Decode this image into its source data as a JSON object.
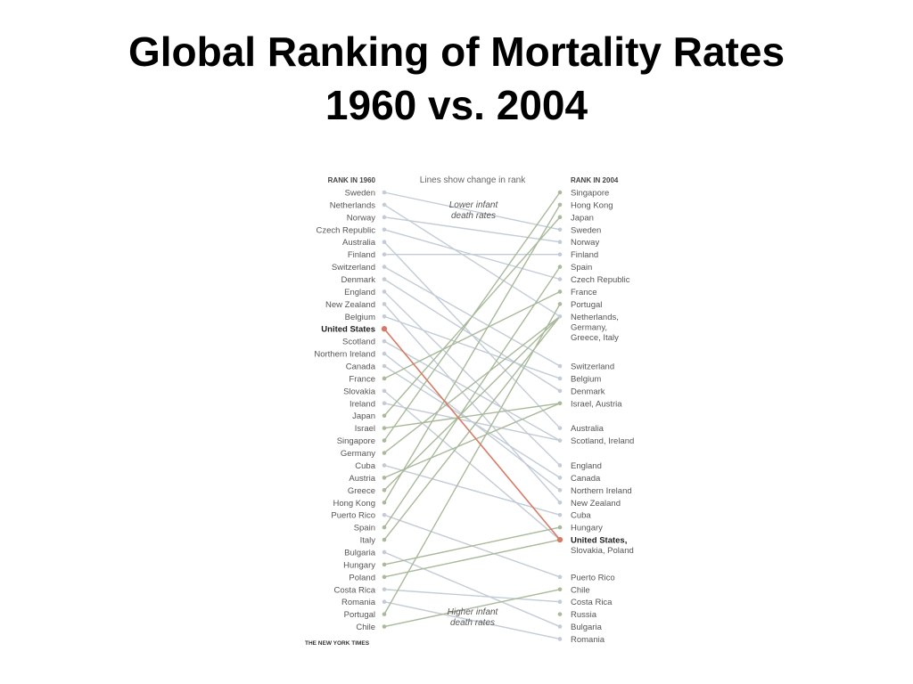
{
  "slide": {
    "title_line1": "Global Ranking of Mortality Rates",
    "title_line2": "1960 vs. 2004"
  },
  "chart_data": {
    "type": "slope",
    "left_header": "RANK IN 1960",
    "right_header": "RANK IN 2004",
    "top_caption": "Lines show change in rank",
    "upper_annotation": [
      "Lower infant",
      "death rates"
    ],
    "lower_annotation": [
      "Higher infant",
      "death rates"
    ],
    "source": "THE NEW YORK TIMES",
    "highlight": "United States",
    "colors": {
      "improved": "#a9b99a",
      "worsened": "#c3ccd6",
      "highlight": "#d77b66",
      "text": "#555555"
    },
    "rank_1960": [
      "Sweden",
      "Netherlands",
      "Norway",
      "Czech Republic",
      "Australia",
      "Finland",
      "Switzerland",
      "Denmark",
      "England",
      "New Zealand",
      "Belgium",
      "United States",
      "Scotland",
      "Northern Ireland",
      "Canada",
      "France",
      "Slovakia",
      "Ireland",
      "Japan",
      "Israel",
      "Singapore",
      "Germany",
      "Cuba",
      "Austria",
      "Greece",
      "Hong Kong",
      "Puerto Rico",
      "Spain",
      "Italy",
      "Bulgaria",
      "Hungary",
      "Poland",
      "Costa Rica",
      "Romania",
      "Portugal",
      "Chile"
    ],
    "rank_2004_labels": [
      {
        "rank": 1,
        "lines": [
          "Singapore"
        ]
      },
      {
        "rank": 2,
        "lines": [
          "Hong Kong"
        ]
      },
      {
        "rank": 3,
        "lines": [
          "Japan"
        ]
      },
      {
        "rank": 4,
        "lines": [
          "Sweden"
        ]
      },
      {
        "rank": 5,
        "lines": [
          "Norway"
        ]
      },
      {
        "rank": 6,
        "lines": [
          "Finland"
        ]
      },
      {
        "rank": 7,
        "lines": [
          "Spain"
        ]
      },
      {
        "rank": 8,
        "lines": [
          "Czech Republic"
        ]
      },
      {
        "rank": 9,
        "lines": [
          "France"
        ]
      },
      {
        "rank": 10,
        "lines": [
          "Portugal"
        ]
      },
      {
        "rank": 11,
        "lines": [
          "Netherlands,",
          "Germany,",
          "Greece, Italy"
        ]
      },
      {
        "rank": 15,
        "lines": [
          "Switzerland"
        ]
      },
      {
        "rank": 16,
        "lines": [
          "Belgium"
        ]
      },
      {
        "rank": 17,
        "lines": [
          "Denmark"
        ]
      },
      {
        "rank": 18,
        "lines": [
          "Israel, Austria"
        ]
      },
      {
        "rank": 20,
        "lines": [
          "Australia"
        ]
      },
      {
        "rank": 21,
        "lines": [
          "Scotland, Ireland"
        ]
      },
      {
        "rank": 23,
        "lines": [
          "England"
        ]
      },
      {
        "rank": 24,
        "lines": [
          "Canada"
        ]
      },
      {
        "rank": 25,
        "lines": [
          "Northern Ireland"
        ]
      },
      {
        "rank": 26,
        "lines": [
          "New Zealand"
        ]
      },
      {
        "rank": 27,
        "lines": [
          "Cuba"
        ]
      },
      {
        "rank": 28,
        "lines": [
          "Hungary"
        ]
      },
      {
        "rank": 29,
        "lines": [
          "United States,",
          "Slovakia, Poland"
        ]
      },
      {
        "rank": 32,
        "lines": [
          "Puerto Rico"
        ]
      },
      {
        "rank": 33,
        "lines": [
          "Chile"
        ]
      },
      {
        "rank": 34,
        "lines": [
          "Costa Rica"
        ]
      },
      {
        "rank": 35,
        "lines": [
          "Russia"
        ]
      },
      {
        "rank": 36,
        "lines": [
          "Bulgaria"
        ]
      },
      {
        "rank": 37,
        "lines": [
          "Romania"
        ]
      }
    ],
    "changes": [
      {
        "country": "Sweden",
        "rank_1960": 1,
        "rank_2004": 4
      },
      {
        "country": "Netherlands",
        "rank_1960": 2,
        "rank_2004": 11
      },
      {
        "country": "Norway",
        "rank_1960": 3,
        "rank_2004": 5
      },
      {
        "country": "Czech Republic",
        "rank_1960": 4,
        "rank_2004": 8
      },
      {
        "country": "Australia",
        "rank_1960": 5,
        "rank_2004": 20
      },
      {
        "country": "Finland",
        "rank_1960": 6,
        "rank_2004": 6
      },
      {
        "country": "Switzerland",
        "rank_1960": 7,
        "rank_2004": 15
      },
      {
        "country": "Denmark",
        "rank_1960": 8,
        "rank_2004": 17
      },
      {
        "country": "England",
        "rank_1960": 9,
        "rank_2004": 23
      },
      {
        "country": "New Zealand",
        "rank_1960": 10,
        "rank_2004": 26
      },
      {
        "country": "Belgium",
        "rank_1960": 11,
        "rank_2004": 16
      },
      {
        "country": "United States",
        "rank_1960": 12,
        "rank_2004": 29
      },
      {
        "country": "Scotland",
        "rank_1960": 13,
        "rank_2004": 21
      },
      {
        "country": "Northern Ireland",
        "rank_1960": 14,
        "rank_2004": 25
      },
      {
        "country": "Canada",
        "rank_1960": 15,
        "rank_2004": 24
      },
      {
        "country": "France",
        "rank_1960": 16,
        "rank_2004": 9
      },
      {
        "country": "Slovakia",
        "rank_1960": 17,
        "rank_2004": 29
      },
      {
        "country": "Ireland",
        "rank_1960": 18,
        "rank_2004": 21
      },
      {
        "country": "Japan",
        "rank_1960": 19,
        "rank_2004": 3
      },
      {
        "country": "Israel",
        "rank_1960": 20,
        "rank_2004": 18
      },
      {
        "country": "Singapore",
        "rank_1960": 21,
        "rank_2004": 1
      },
      {
        "country": "Germany",
        "rank_1960": 22,
        "rank_2004": 11
      },
      {
        "country": "Cuba",
        "rank_1960": 23,
        "rank_2004": 27
      },
      {
        "country": "Austria",
        "rank_1960": 24,
        "rank_2004": 18
      },
      {
        "country": "Greece",
        "rank_1960": 25,
        "rank_2004": 11
      },
      {
        "country": "Hong Kong",
        "rank_1960": 26,
        "rank_2004": 2
      },
      {
        "country": "Puerto Rico",
        "rank_1960": 27,
        "rank_2004": 32
      },
      {
        "country": "Spain",
        "rank_1960": 28,
        "rank_2004": 7
      },
      {
        "country": "Italy",
        "rank_1960": 29,
        "rank_2004": 11
      },
      {
        "country": "Bulgaria",
        "rank_1960": 30,
        "rank_2004": 36
      },
      {
        "country": "Hungary",
        "rank_1960": 31,
        "rank_2004": 28
      },
      {
        "country": "Poland",
        "rank_1960": 32,
        "rank_2004": 29
      },
      {
        "country": "Costa Rica",
        "rank_1960": 33,
        "rank_2004": 34
      },
      {
        "country": "Romania",
        "rank_1960": 34,
        "rank_2004": 37
      },
      {
        "country": "Portugal",
        "rank_1960": 35,
        "rank_2004": 10
      },
      {
        "country": "Chile",
        "rank_1960": 36,
        "rank_2004": 33
      }
    ]
  }
}
